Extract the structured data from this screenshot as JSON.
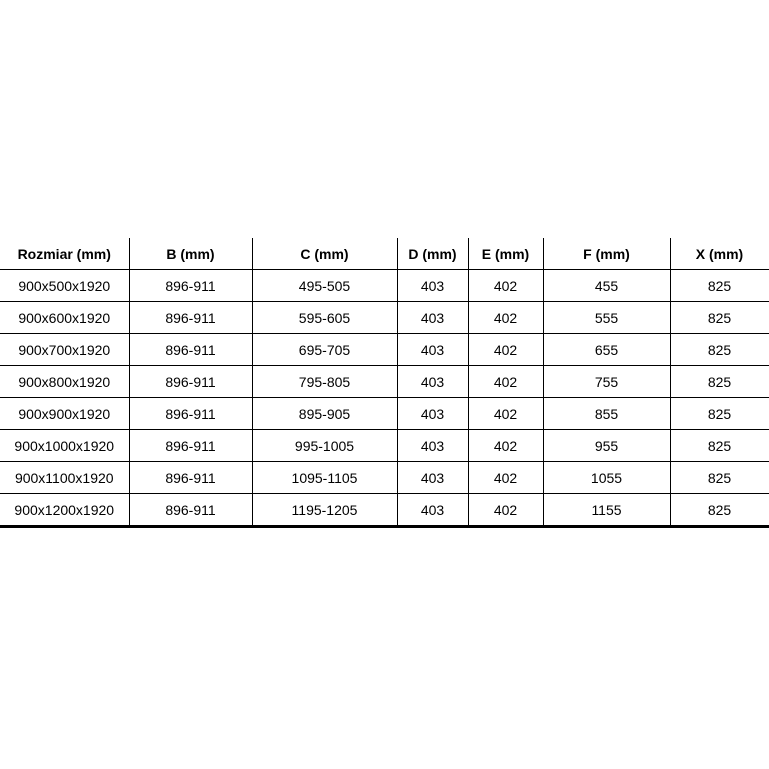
{
  "table": {
    "columns": [
      "Rozmiar (mm)",
      "B (mm)",
      "C (mm)",
      "D (mm)",
      "E (mm)",
      "F (mm)",
      "X (mm)"
    ],
    "rows": [
      [
        "900x500x1920",
        "896-911",
        "495-505",
        "403",
        "402",
        "455",
        "825"
      ],
      [
        "900x600x1920",
        "896-911",
        "595-605",
        "403",
        "402",
        "555",
        "825"
      ],
      [
        "900x700x1920",
        "896-911",
        "695-705",
        "403",
        "402",
        "655",
        "825"
      ],
      [
        "900x800x1920",
        "896-911",
        "795-805",
        "403",
        "402",
        "755",
        "825"
      ],
      [
        "900x900x1920",
        "896-911",
        "895-905",
        "403",
        "402",
        "855",
        "825"
      ],
      [
        "900x1000x1920",
        "896-911",
        "995-1005",
        "403",
        "402",
        "955",
        "825"
      ],
      [
        "900x1100x1920",
        "896-911",
        "1095-1105",
        "403",
        "402",
        "1055",
        "825"
      ],
      [
        "900x1200x1920",
        "896-911",
        "1195-1205",
        "403",
        "402",
        "1155",
        "825"
      ]
    ],
    "border_color": "#000000",
    "text_color": "#000000",
    "background_color": "#ffffff"
  }
}
